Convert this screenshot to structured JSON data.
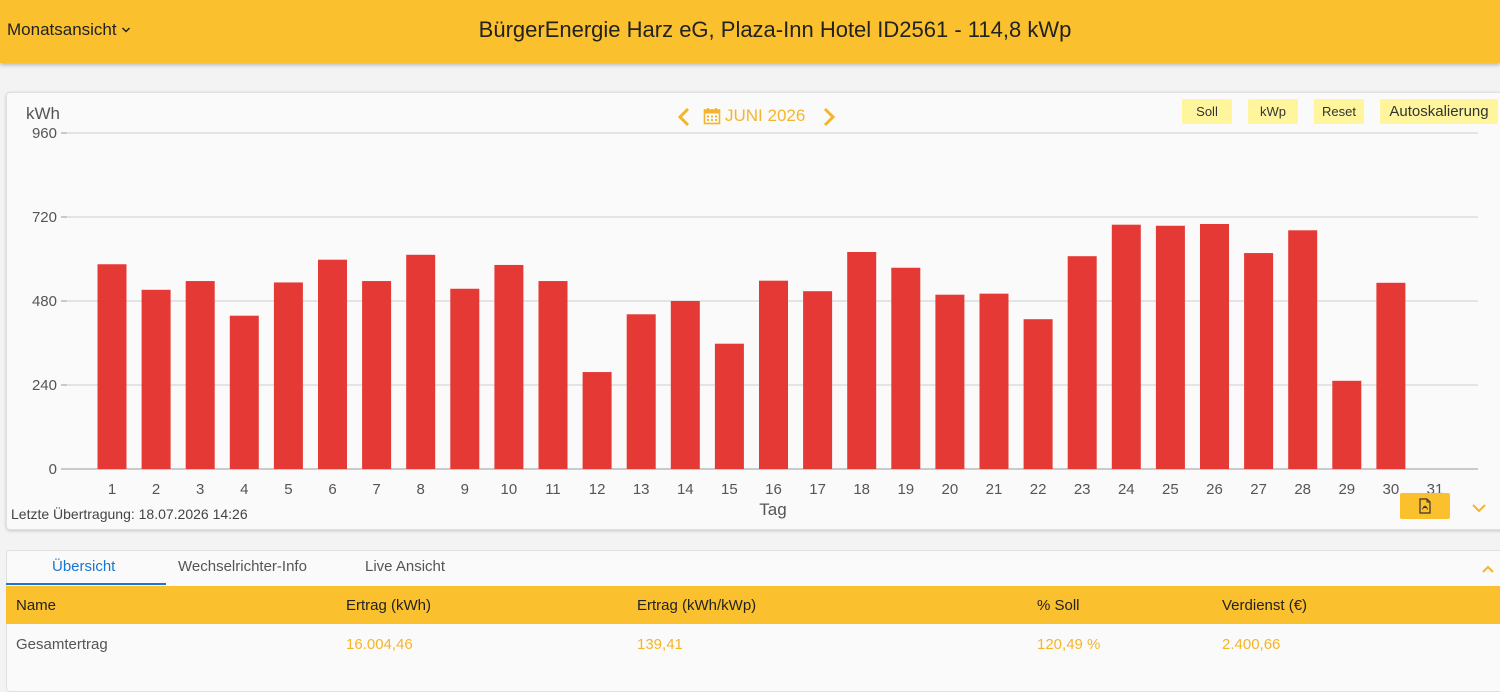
{
  "header": {
    "view_select": "Monatsansicht",
    "title": "BürgerEnergie Harz eG, Plaza-Inn Hotel ID2561 - 114,8 kWp",
    "bg_color": "#fbc02d"
  },
  "chart_nav": {
    "month_label": "JUNI 2026",
    "prev_icon": "chevron-left-icon",
    "next_icon": "chevron-right-icon",
    "calendar_icon": "calendar-icon",
    "accent_color": "#f5b52a"
  },
  "toolbar": {
    "soll": "Soll",
    "kwp": "kWp",
    "reset": "Reset",
    "autoscale": "Autoskalierung"
  },
  "chart_data": {
    "type": "bar",
    "ylabel": "kWh",
    "xlabel": "Tag",
    "ylim": [
      0,
      960
    ],
    "yticks": [
      0,
      240,
      480,
      720,
      960
    ],
    "grid": true,
    "bar_color": "#e53935",
    "categories": [
      "1",
      "2",
      "3",
      "4",
      "5",
      "6",
      "7",
      "8",
      "9",
      "10",
      "11",
      "12",
      "13",
      "14",
      "15",
      "16",
      "17",
      "18",
      "19",
      "20",
      "21",
      "22",
      "23",
      "24",
      "25",
      "26",
      "27",
      "28",
      "29",
      "30",
      "31"
    ],
    "values": [
      585,
      512,
      537,
      438,
      533,
      598,
      537,
      612,
      515,
      583,
      537,
      277,
      442,
      480,
      358,
      538,
      508,
      620,
      575,
      498,
      501,
      428,
      608,
      698,
      695,
      700,
      617,
      682,
      252,
      532,
      null
    ]
  },
  "footer": {
    "last_transfer": "Letzte Übertragung: 18.07.2026 14:26",
    "pdf_icon": "pdf-icon",
    "expand_icon": "chevron-down-icon"
  },
  "tabs": [
    {
      "label": "Übersicht"
    },
    {
      "label": "Wechselrichter-Info"
    },
    {
      "label": "Live Ansicht"
    }
  ],
  "table": {
    "headers": [
      "Name",
      "Ertrag (kWh)",
      "Ertrag (kWh/kWp)",
      "% Soll",
      "Verdienst (€)"
    ],
    "rows": [
      [
        "Gesamtertrag",
        "16.004,46",
        "139,41",
        "120,49 %",
        "2.400,66"
      ]
    ]
  }
}
